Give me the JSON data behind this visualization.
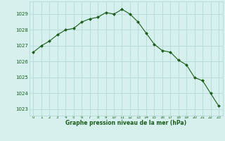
{
  "x": [
    0,
    1,
    2,
    3,
    4,
    5,
    6,
    7,
    8,
    9,
    10,
    11,
    12,
    13,
    14,
    15,
    16,
    17,
    18,
    19,
    20,
    21,
    22,
    23
  ],
  "y": [
    1026.6,
    1027.0,
    1027.3,
    1027.7,
    1028.0,
    1028.1,
    1028.5,
    1028.7,
    1028.8,
    1029.1,
    1029.0,
    1029.3,
    1029.0,
    1028.5,
    1027.8,
    1027.1,
    1026.7,
    1026.6,
    1026.1,
    1025.8,
    1025.0,
    1024.8,
    1024.0,
    1023.2
  ],
  "line_color": "#1a5c1a",
  "marker": "D",
  "marker_size": 2.0,
  "bg_color": "#d6f0ee",
  "grid_color": "#b8dcd8",
  "xlabel": "Graphe pression niveau de la mer (hPa)",
  "xlabel_color": "#1a5c1a",
  "tick_color": "#1a5c1a",
  "ylim": [
    1022.6,
    1029.8
  ],
  "yticks": [
    1023,
    1024,
    1025,
    1026,
    1027,
    1028,
    1029
  ],
  "xlim": [
    -0.5,
    23.5
  ],
  "xticks": [
    0,
    1,
    2,
    3,
    4,
    5,
    6,
    7,
    8,
    9,
    10,
    11,
    12,
    13,
    14,
    15,
    16,
    17,
    18,
    19,
    20,
    21,
    22,
    23
  ],
  "xtick_labels": [
    "0",
    "1",
    "2",
    "3",
    "4",
    "5",
    "6",
    "7",
    "8",
    "9",
    "10",
    "11",
    "12",
    "13",
    "14",
    "15",
    "16",
    "17",
    "18",
    "19",
    "20",
    "21",
    "22",
    "23"
  ]
}
